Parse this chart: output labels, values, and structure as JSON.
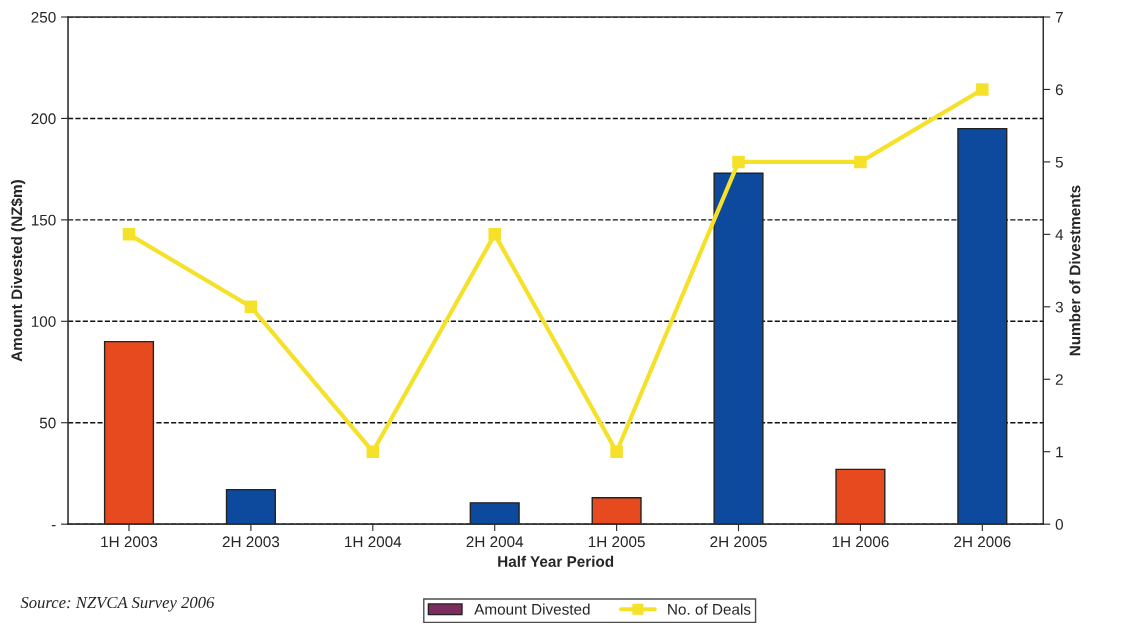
{
  "chart_data": {
    "type": "bar",
    "xlabel": "Half Year Period",
    "ylabel": "Amount Divested (NZ$m)",
    "y2label": "Number of Divestments",
    "categories": [
      "1H 2003",
      "2H 2003",
      "1H 2004",
      "2H 2004",
      "1H 2005",
      "2H 2005",
      "1H 2006",
      "2H 2006"
    ],
    "series": [
      {
        "name": "Amount Divested",
        "color": "#7b2d5e",
        "colors": [
          "#e84a20",
          "#0d4a9e",
          "#0d4a9e",
          "#0d4a9e",
          "#e84a20",
          "#0d4a9e",
          "#e84a20",
          "#0d4a9e"
        ],
        "values": [
          90,
          17,
          0,
          10.5,
          13,
          173,
          27,
          195
        ]
      },
      {
        "name": "No. of Deals",
        "type": "line",
        "axis": "y2",
        "color": "#f5e12a",
        "marker": "square",
        "values": [
          4,
          3,
          1,
          4,
          1,
          5,
          5,
          6
        ]
      }
    ],
    "ylim": [
      0,
      250
    ],
    "yticks": [
      {
        "value": 0,
        "label": "-"
      },
      50,
      100,
      150,
      200,
      250
    ],
    "y2lim": [
      0,
      7
    ],
    "y2ticks": [
      0,
      1,
      2,
      3,
      4,
      5,
      6,
      7
    ],
    "grid": "y",
    "legend": "bottom",
    "annotations": [
      "Source: NZVCA Survey 2006"
    ]
  }
}
